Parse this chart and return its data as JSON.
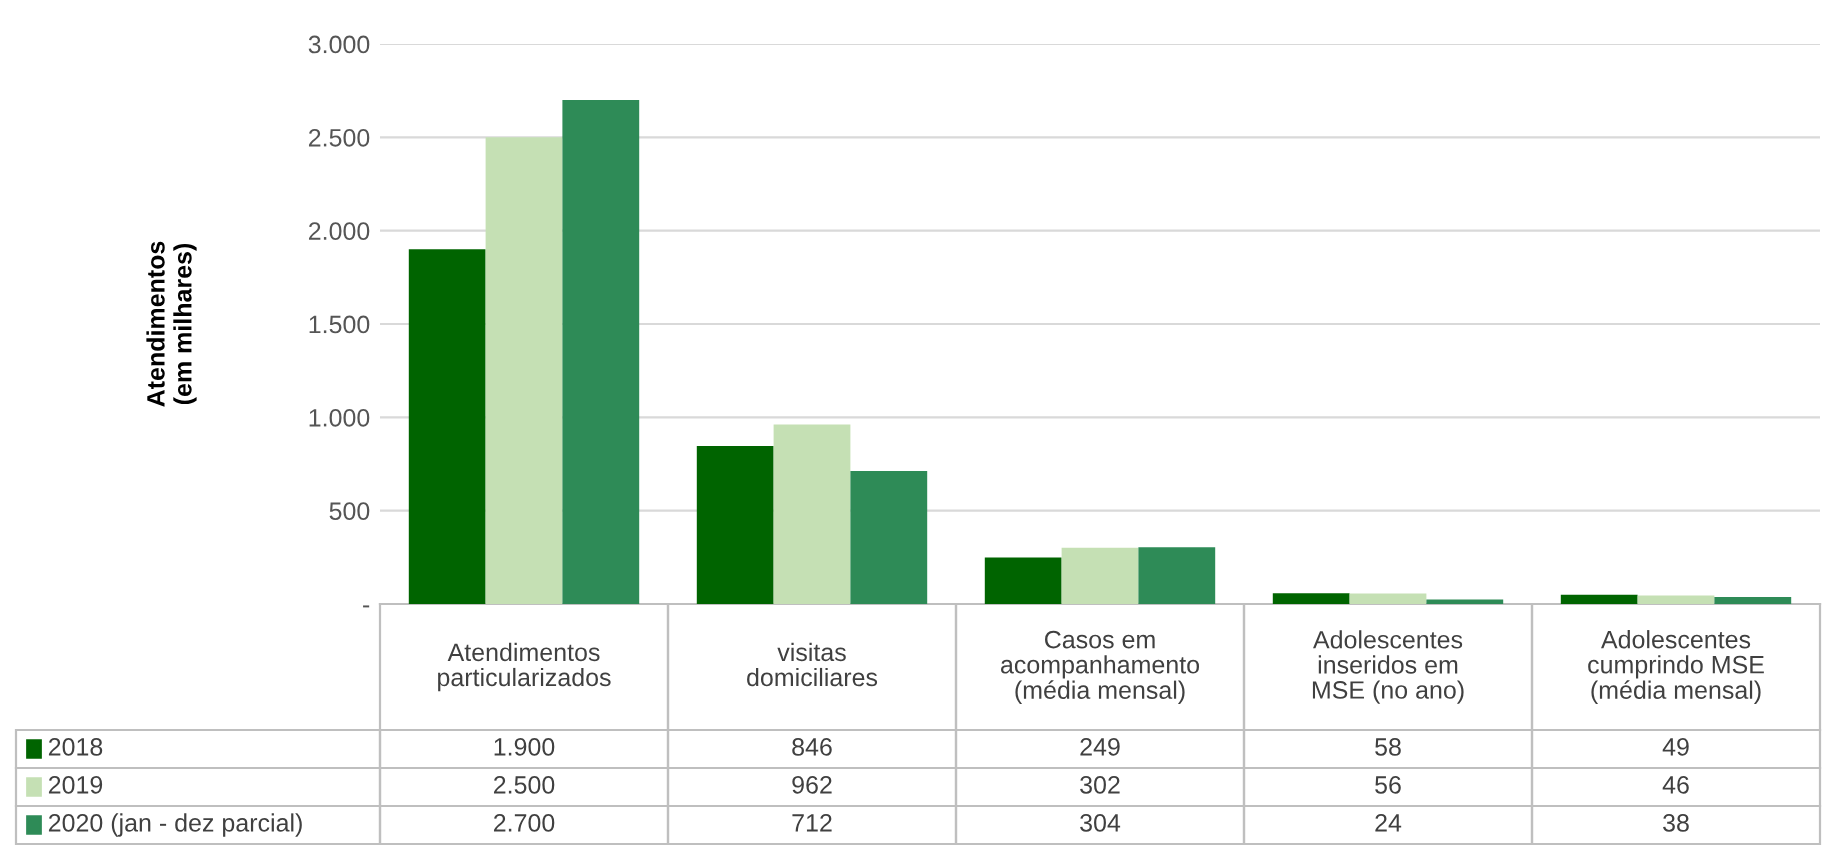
{
  "chart_data": {
    "type": "bar",
    "ylabel": "Atendimentos\n(em milhares)",
    "categories": [
      "Atendimentos\nparticularizados",
      "visitas\ndomiciliares",
      "Casos em\nacompanhamento\n(média mensal)",
      "Adolescentes\ninseridos em\nMSE (no ano)",
      "Adolescentes\ncumprindo MSE\n(média mensal)"
    ],
    "series": [
      {
        "name": "2018",
        "color": "#006400",
        "values": [
          1900,
          846,
          249,
          58,
          49
        ],
        "value_labels": [
          "1.900",
          "846",
          "249",
          "58",
          "49"
        ]
      },
      {
        "name": "2019",
        "color": "#c5e0b4",
        "values": [
          2500,
          962,
          302,
          56,
          46
        ],
        "value_labels": [
          "2.500",
          "962",
          "302",
          "56",
          "46"
        ]
      },
      {
        "name": "2020 (jan - dez parcial)",
        "color": "#2e8b57",
        "values": [
          2700,
          712,
          304,
          24,
          38
        ],
        "value_labels": [
          "2.700",
          "712",
          "304",
          "24",
          "38"
        ]
      }
    ],
    "ylim": [
      0,
      3000
    ],
    "yticks": [
      {
        "value": 0,
        "label": "-"
      },
      {
        "value": 500,
        "label": "500"
      },
      {
        "value": 1000,
        "label": "1.000"
      },
      {
        "value": 1500,
        "label": "1.500"
      },
      {
        "value": 2000,
        "label": "2.000"
      },
      {
        "value": 2500,
        "label": "2.500"
      },
      {
        "value": 3000,
        "label": "3.000"
      }
    ],
    "grid": "y",
    "legend": "bottom"
  }
}
